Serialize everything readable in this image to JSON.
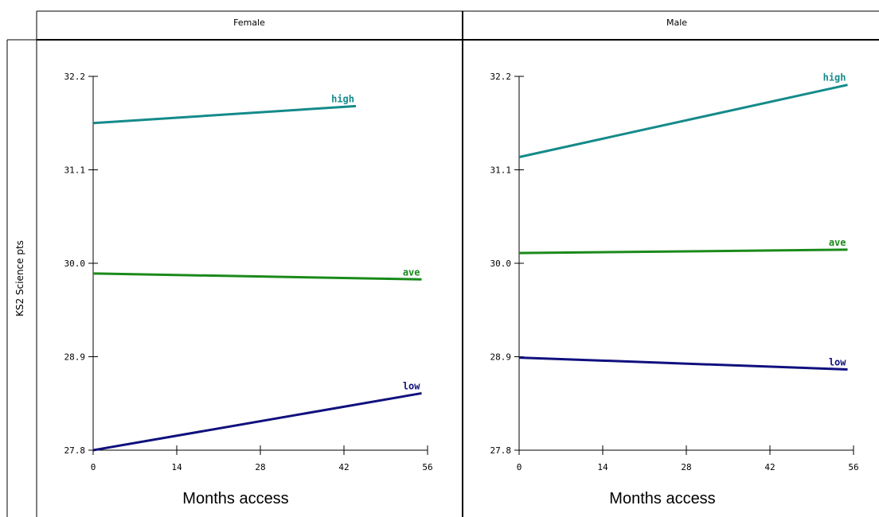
{
  "ylabel": "KS2 Science pts",
  "xlabel": "Months access",
  "colors": {
    "high": "#158a8a",
    "ave": "#1a8a1a",
    "low": "#10107e"
  },
  "chart_data": [
    {
      "type": "line",
      "panel": "Female",
      "xlabel": "Months access",
      "ylabel": "KS2 Science pts",
      "xlim": [
        0,
        56
      ],
      "ylim": [
        27.8,
        32.2
      ],
      "xticks": [
        0,
        14,
        28,
        42,
        56
      ],
      "yticks": [
        "27.8",
        "28.9",
        "30.0",
        "31.1",
        "32.2"
      ],
      "series": [
        {
          "name": "high",
          "color": "#158a8a",
          "x": [
            0,
            44
          ],
          "y": [
            31.65,
            31.85
          ]
        },
        {
          "name": "ave",
          "color": "#1a8a1a",
          "x": [
            0,
            55
          ],
          "y": [
            29.88,
            29.81
          ]
        },
        {
          "name": "low",
          "color": "#10107e",
          "x": [
            0,
            55
          ],
          "y": [
            27.8,
            28.47
          ]
        }
      ]
    },
    {
      "type": "line",
      "panel": "Male",
      "xlabel": "Months access",
      "ylabel": "KS2 Science pts",
      "xlim": [
        0,
        56
      ],
      "ylim": [
        27.8,
        32.2
      ],
      "xticks": [
        0,
        14,
        28,
        42,
        56
      ],
      "yticks": [
        "27.8",
        "28.9",
        "30.0",
        "31.1",
        "32.2"
      ],
      "series": [
        {
          "name": "high",
          "color": "#158a8a",
          "x": [
            0,
            55
          ],
          "y": [
            31.25,
            32.1
          ]
        },
        {
          "name": "ave",
          "color": "#1a8a1a",
          "x": [
            0,
            55
          ],
          "y": [
            30.12,
            30.16
          ]
        },
        {
          "name": "low",
          "color": "#10107e",
          "x": [
            0,
            55
          ],
          "y": [
            28.89,
            28.75
          ]
        }
      ]
    }
  ]
}
